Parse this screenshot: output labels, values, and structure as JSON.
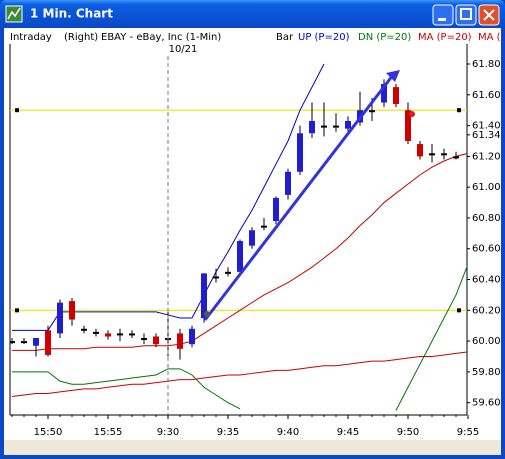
{
  "window": {
    "title": "1 Min. Chart"
  },
  "chart_data": {
    "type": "candlestick",
    "header": {
      "mode": "Intraday",
      "side": "(Right)",
      "symbol": "EBAY - eBay, Inc (1-Min)",
      "style": "Bar"
    },
    "categories": [
      null,
      null,
      null,
      "15:50",
      null,
      null,
      null,
      null,
      "15:55",
      null,
      null,
      null,
      null,
      "9:30",
      null,
      null,
      null,
      null,
      "9:35",
      null,
      null,
      null,
      null,
      "9:40",
      null,
      null,
      null,
      null,
      "9:45",
      null,
      null,
      null,
      null,
      "9:50",
      null,
      null,
      null,
      null,
      "9:55"
    ],
    "open": [
      60.0,
      60.0,
      59.97,
      60.07,
      60.05,
      60.26,
      60.08,
      60.06,
      60.05,
      60.05,
      60.05,
      60.02,
      60.03,
      60.02,
      60.05,
      59.98,
      60.15,
      60.42,
      60.45,
      60.45,
      60.62,
      60.75,
      60.78,
      60.95,
      61.1,
      61.35,
      61.4,
      61.4,
      61.38,
      61.42,
      61.5,
      61.55,
      61.65,
      61.5,
      61.28,
      61.22,
      61.22,
      61.2,
      null
    ],
    "high": [
      60.02,
      60.02,
      60.02,
      60.1,
      60.27,
      60.28,
      60.1,
      60.08,
      60.07,
      60.08,
      60.07,
      60.05,
      60.05,
      60.2,
      60.08,
      60.1,
      60.44,
      60.47,
      60.48,
      60.66,
      60.74,
      60.8,
      60.94,
      61.12,
      61.4,
      61.55,
      61.55,
      61.48,
      61.46,
      61.62,
      61.58,
      61.7,
      61.67,
      61.55,
      61.3,
      61.28,
      61.25,
      61.23,
      null
    ],
    "low": [
      59.98,
      59.98,
      59.9,
      59.9,
      60.02,
      60.1,
      60.05,
      60.03,
      60.01,
      60.0,
      60.02,
      59.98,
      59.96,
      59.9,
      59.88,
      59.96,
      60.12,
      60.38,
      60.42,
      60.43,
      60.6,
      60.72,
      60.76,
      60.92,
      61.08,
      61.32,
      61.33,
      61.36,
      61.36,
      61.4,
      61.43,
      61.52,
      61.52,
      61.28,
      61.18,
      61.16,
      61.18,
      61.18,
      null
    ],
    "close": [
      60.0,
      60.0,
      60.02,
      59.91,
      60.25,
      60.14,
      60.08,
      60.06,
      60.03,
      60.05,
      60.05,
      60.02,
      59.98,
      60.02,
      59.95,
      60.08,
      60.44,
      60.42,
      60.45,
      60.65,
      60.72,
      60.75,
      60.93,
      61.1,
      61.35,
      61.43,
      61.4,
      61.4,
      61.43,
      61.5,
      61.5,
      61.67,
      61.54,
      61.3,
      61.2,
      61.22,
      61.22,
      61.2,
      null
    ],
    "up_color": "#1f1fcf",
    "down_color": "#d00000",
    "flat_color": "#000000",
    "series": [
      {
        "name": "UP (P=20)",
        "color": "#0000cc",
        "values": [
          60.07,
          60.07,
          60.07,
          60.07,
          60.19,
          60.19,
          60.19,
          60.19,
          60.19,
          60.19,
          60.19,
          60.19,
          60.19,
          60.17,
          60.15,
          60.15,
          60.3,
          60.45,
          60.58,
          60.72,
          60.85,
          61.0,
          61.15,
          61.3,
          61.5,
          61.65,
          61.8,
          null,
          null,
          null,
          null,
          null,
          null,
          null,
          null,
          null,
          null,
          null,
          null
        ]
      },
      {
        "name": "DN (P=20)",
        "color": "#007700",
        "values": [
          59.8,
          59.8,
          59.8,
          59.8,
          59.74,
          59.72,
          59.72,
          59.73,
          59.74,
          59.75,
          59.76,
          59.77,
          59.78,
          59.82,
          59.82,
          59.78,
          59.7,
          59.65,
          59.6,
          59.56,
          null,
          null,
          null,
          null,
          null,
          null,
          null,
          null,
          null,
          null,
          null,
          null,
          59.55,
          59.7,
          59.85,
          60.0,
          60.15,
          60.3,
          60.5
        ]
      },
      {
        "name": "MA (P=20)",
        "color": "#cc0000",
        "values": [
          59.94,
          59.94,
          59.94,
          59.95,
          59.95,
          59.95,
          59.95,
          59.96,
          59.96,
          59.96,
          59.96,
          59.97,
          59.97,
          59.97,
          59.98,
          60.0,
          60.05,
          60.1,
          60.15,
          60.2,
          60.25,
          60.3,
          60.34,
          60.38,
          60.43,
          60.48,
          60.54,
          60.6,
          60.67,
          60.75,
          60.82,
          60.9,
          60.96,
          61.02,
          61.08,
          61.13,
          61.17,
          61.2,
          61.22
        ]
      },
      {
        "name": "MA (",
        "color": "#cc0000",
        "values": [
          59.64,
          59.65,
          59.66,
          59.66,
          59.67,
          59.68,
          59.69,
          59.69,
          59.7,
          59.71,
          59.72,
          59.72,
          59.73,
          59.74,
          59.75,
          59.75,
          59.76,
          59.77,
          59.78,
          59.78,
          59.79,
          59.8,
          59.81,
          59.81,
          59.82,
          59.83,
          59.84,
          59.84,
          59.85,
          59.86,
          59.87,
          59.87,
          59.88,
          59.89,
          59.9,
          59.9,
          59.91,
          59.92,
          59.93
        ]
      }
    ],
    "levels": [
      61.5,
      60.2
    ],
    "level_color": "#e8e800",
    "last_price": {
      "value": 61.34,
      "label": "61.34"
    },
    "date_break": {
      "date": "10/21",
      "category": "9:30"
    },
    "ylim": [
      59.52,
      61.93
    ],
    "yticks": [
      {
        "value": 61.8,
        "label": "61.80"
      },
      {
        "value": 61.6,
        "label": "61.60"
      },
      {
        "value": 61.4,
        "label": "61.40"
      },
      {
        "value": 61.2,
        "label": "61.20"
      },
      {
        "value": 61.0,
        "label": "61.00"
      },
      {
        "value": 60.8,
        "label": "60.80"
      },
      {
        "value": 60.6,
        "label": "60.60"
      },
      {
        "value": 60.4,
        "label": "60.40"
      },
      {
        "value": 60.2,
        "label": "60.20"
      },
      {
        "value": 60.0,
        "label": "60.00"
      },
      {
        "value": 59.8,
        "label": "59.80"
      },
      {
        "value": 59.6,
        "label": "59.60"
      }
    ]
  }
}
